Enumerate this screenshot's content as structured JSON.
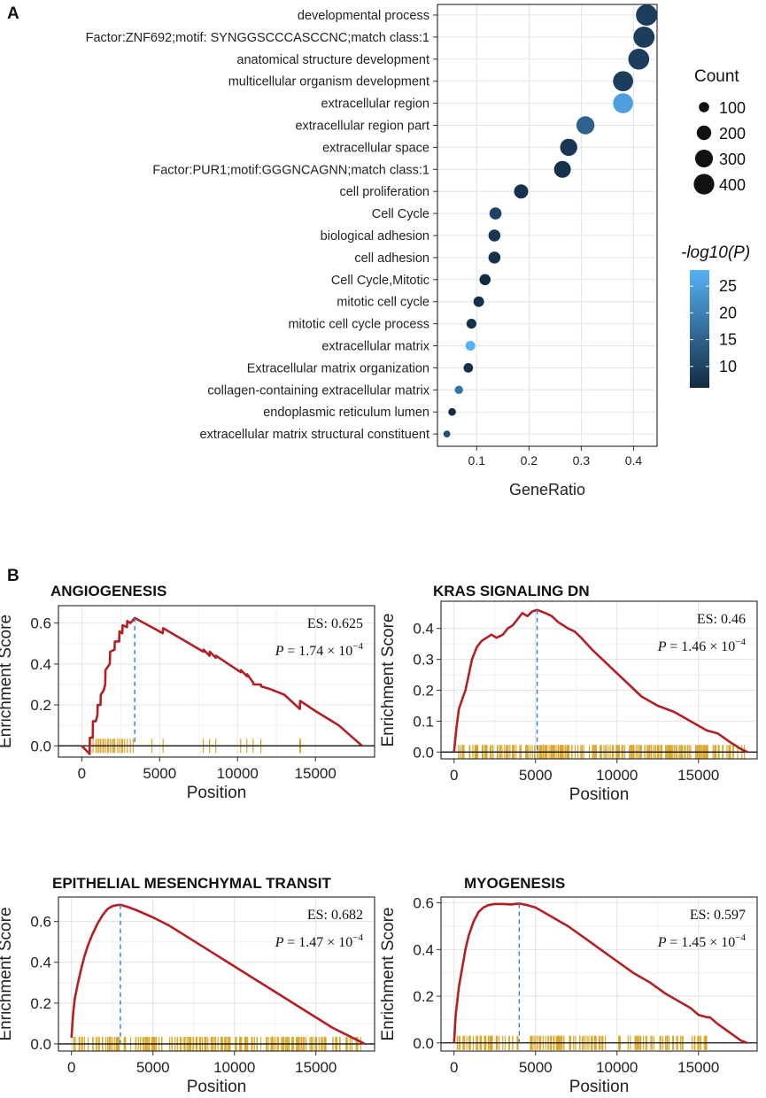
{
  "panel_labels": [
    "A",
    "B"
  ],
  "chart_data": [
    {
      "type": "scatter",
      "subtype": "dot-plot",
      "panel": "A",
      "xlabel": "GeneRatio",
      "xlim": [
        0.025,
        0.445
      ],
      "xticks": [
        0.1,
        0.2,
        0.3,
        0.4
      ],
      "xtick_labels": [
        "0.1",
        "0.2",
        "0.3",
        "0.4"
      ],
      "categories": [
        "developmental process",
        "Factor:ZNF692;motif: SYNGGSCCCASCCNC;match class:1",
        "anatomical structure development",
        "multicellular organism development",
        "extracellular region",
        "extracellular region part",
        "extracellular space",
        "Factor:PUR1;motif:GGGNCAGNN;match class:1",
        "cell proliferation",
        "Cell Cycle",
        "biological adhesion",
        "cell adhesion",
        "Cell Cycle,Mitotic",
        "mitotic cell cycle",
        "mitotic cell cycle process",
        "extracellular matrix",
        "Extracellular matrix organization",
        "collagen-containing extracellular matrix",
        "endoplasmic reticulum lumen",
        "extracellular matrix structural constituent"
      ],
      "gene_ratio": [
        0.425,
        0.42,
        0.41,
        0.38,
        0.38,
        0.308,
        0.276,
        0.264,
        0.185,
        0.136,
        0.134,
        0.134,
        0.116,
        0.104,
        0.09,
        0.088,
        0.084,
        0.066,
        0.053,
        0.043
      ],
      "count": [
        430,
        425,
        415,
        385,
        380,
        310,
        280,
        268,
        190,
        138,
        136,
        136,
        118,
        106,
        93,
        90,
        86,
        67,
        55,
        45
      ],
      "neg_log10_p": [
        9,
        9,
        9,
        9,
        25,
        15,
        8,
        7,
        7,
        10,
        8,
        7,
        6,
        7,
        7,
        28,
        7,
        18,
        6,
        12
      ],
      "size_legend": {
        "title": "Count",
        "labels": [
          "100",
          "200",
          "300",
          "400"
        ],
        "values": [
          100,
          200,
          300,
          400
        ]
      },
      "color_legend": {
        "title": "-log10(P)",
        "labels": [
          "25",
          "20",
          "15",
          "10"
        ],
        "values": [
          25,
          20,
          15,
          10
        ],
        "range": [
          6,
          28
        ],
        "low_color": "#132b43",
        "high_color": "#56b1f7"
      }
    },
    {
      "type": "line",
      "panel": "B",
      "title": "ANGIOGENESIS",
      "xlabel": "Position",
      "ylabel": "Enrichment Score",
      "xlim": [
        -1500,
        18800
      ],
      "ylim": [
        -0.055,
        0.685
      ],
      "xticks": [
        0,
        5000,
        10000,
        15000
      ],
      "yticks": [
        0.0,
        0.2,
        0.4,
        0.6
      ],
      "ytick_labels": [
        "0.0",
        "0.2",
        "0.4",
        "0.6"
      ],
      "es_label": "ES: 0.625",
      "p_label": "P",
      "p_value": "= 1.74 × 10",
      "p_exponent": "−4",
      "peak_position": 3400,
      "x": [
        0,
        500,
        520,
        700,
        720,
        900,
        1000,
        1020,
        1200,
        1220,
        1400,
        1500,
        1520,
        1800,
        1820,
        2100,
        2120,
        2400,
        2420,
        2600,
        2620,
        2900,
        2920,
        3100,
        3120,
        3400,
        3400,
        4000,
        4600,
        5200,
        5220,
        7800,
        7820,
        8200,
        8220,
        8600,
        8620,
        10200,
        10220,
        10600,
        10620,
        11000,
        11020,
        11500,
        11520,
        12000,
        13000,
        14000,
        14020,
        15000,
        16500,
        18000
      ],
      "y": [
        0.0,
        -0.04,
        0.04,
        0.04,
        0.12,
        0.12,
        0.15,
        0.2,
        0.2,
        0.25,
        0.27,
        0.3,
        0.37,
        0.4,
        0.46,
        0.47,
        0.51,
        0.51,
        0.56,
        0.55,
        0.59,
        0.58,
        0.61,
        0.6,
        0.6,
        0.625,
        0.625,
        0.6,
        0.575,
        0.55,
        0.575,
        0.46,
        0.47,
        0.44,
        0.46,
        0.43,
        0.44,
        0.36,
        0.37,
        0.34,
        0.35,
        0.31,
        0.3,
        0.3,
        0.29,
        0.28,
        0.25,
        0.18,
        0.22,
        0.17,
        0.1,
        0.0
      ],
      "hits": [
        520,
        720,
        900,
        1000,
        1100,
        1200,
        1220,
        1350,
        1400,
        1520,
        1650,
        1700,
        1820,
        1950,
        2050,
        2120,
        2300,
        2420,
        2550,
        2620,
        2750,
        2920,
        3120,
        3300,
        4500,
        5220,
        7800,
        8200,
        8600,
        10200,
        10600,
        11000,
        11500,
        14000,
        14050
      ]
    },
    {
      "type": "line",
      "panel": "B",
      "title": "KRAS SIGNALING DN",
      "xlabel": "Position",
      "ylabel": "Enrichment Score",
      "xlim": [
        -800,
        18600
      ],
      "ylim": [
        -0.022,
        0.488
      ],
      "xticks": [
        0,
        5000,
        10000,
        15000
      ],
      "yticks": [
        0.0,
        0.1,
        0.2,
        0.3,
        0.4
      ],
      "ytick_labels": [
        "0.0",
        "0.1",
        "0.2",
        "0.3",
        "0.4"
      ],
      "es_label": "ES: 0.46",
      "p_label": "P",
      "p_value": "= 1.46 × 10",
      "p_exponent": "−4",
      "peak_position": 5100,
      "x": [
        0,
        150,
        300,
        500,
        700,
        900,
        1100,
        1400,
        1700,
        2000,
        2300,
        2600,
        3000,
        3300,
        3600,
        3900,
        4200,
        4500,
        4800,
        5100,
        5600,
        6000,
        6400,
        7000,
        7400,
        7800,
        8500,
        9500,
        10500,
        11500,
        12500,
        13500,
        14500,
        15500,
        16200,
        17000,
        17600,
        18000
      ],
      "y": [
        0.0,
        0.08,
        0.14,
        0.17,
        0.2,
        0.25,
        0.3,
        0.34,
        0.36,
        0.37,
        0.38,
        0.37,
        0.38,
        0.4,
        0.41,
        0.43,
        0.45,
        0.44,
        0.455,
        0.46,
        0.45,
        0.44,
        0.42,
        0.4,
        0.39,
        0.37,
        0.33,
        0.28,
        0.23,
        0.18,
        0.15,
        0.13,
        0.1,
        0.07,
        0.06,
        0.03,
        0.01,
        0.0
      ],
      "hits_range": [
        100,
        17900
      ],
      "hits_count": 230
    },
    {
      "type": "line",
      "panel": "B",
      "title": "EPITHELIAL MESENCHYMAL TRANSIT",
      "xlabel": "Position",
      "ylabel": "Enrichment Score",
      "xlim": [
        -800,
        18600
      ],
      "ylim": [
        -0.035,
        0.72
      ],
      "xticks": [
        0,
        5000,
        10000,
        15000
      ],
      "yticks": [
        0.0,
        0.2,
        0.4,
        0.6
      ],
      "ytick_labels": [
        "0.0",
        "0.2",
        "0.4",
        "0.6"
      ],
      "es_label": "ES: 0.682",
      "p_label": "P",
      "p_value": "= 1.47 × 10",
      "p_exponent": "−4",
      "peak_position": 3000,
      "x": [
        0,
        100,
        200,
        400,
        600,
        800,
        1000,
        1300,
        1600,
        1900,
        2200,
        2500,
        2800,
        3000,
        3500,
        4000,
        5000,
        6000,
        7000,
        8000,
        9000,
        10000,
        11000,
        12000,
        13000,
        14000,
        15000,
        16000,
        17000,
        18000
      ],
      "y": [
        0.03,
        0.15,
        0.22,
        0.3,
        0.37,
        0.43,
        0.48,
        0.54,
        0.59,
        0.63,
        0.66,
        0.675,
        0.68,
        0.682,
        0.67,
        0.655,
        0.62,
        0.58,
        0.53,
        0.48,
        0.43,
        0.38,
        0.33,
        0.28,
        0.23,
        0.18,
        0.13,
        0.08,
        0.04,
        0.0
      ],
      "hits_range": [
        100,
        17800
      ],
      "hits_count": 200
    },
    {
      "type": "line",
      "panel": "B",
      "title": "MYOGENESIS",
      "xlabel": "Position",
      "ylabel": "Enrichment Score",
      "xlim": [
        -800,
        18600
      ],
      "ylim": [
        -0.035,
        0.625
      ],
      "xticks": [
        0,
        5000,
        10000,
        15000
      ],
      "yticks": [
        0.0,
        0.2,
        0.4,
        0.6
      ],
      "ytick_labels": [
        "0.0",
        "0.2",
        "0.4",
        "0.6"
      ],
      "es_label": "ES: 0.597",
      "p_label": "P",
      "p_value": "= 1.45 × 10",
      "p_exponent": "−4",
      "peak_position": 4000,
      "x": [
        0,
        100,
        200,
        300,
        500,
        700,
        900,
        1200,
        1500,
        1800,
        2100,
        2500,
        3000,
        3500,
        4000,
        4500,
        5000,
        6000,
        7000,
        8000,
        9000,
        10000,
        11000,
        12000,
        13000,
        14000,
        14500,
        15000,
        15500,
        15700,
        16200,
        17000,
        17600,
        18000
      ],
      "y": [
        0.0,
        0.12,
        0.18,
        0.24,
        0.32,
        0.4,
        0.46,
        0.52,
        0.56,
        0.58,
        0.59,
        0.595,
        0.595,
        0.593,
        0.597,
        0.59,
        0.58,
        0.54,
        0.5,
        0.45,
        0.4,
        0.35,
        0.3,
        0.26,
        0.21,
        0.17,
        0.15,
        0.12,
        0.11,
        0.11,
        0.08,
        0.04,
        0.01,
        0.0
      ],
      "hits_range": [
        100,
        15600
      ],
      "hits_count": 150
    }
  ]
}
